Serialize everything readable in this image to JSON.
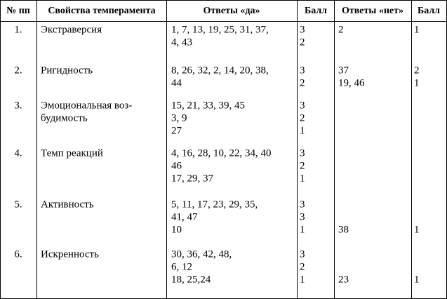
{
  "table": {
    "header": [
      "№ пп",
      "Свойства темперамента",
      "Ответы «да»",
      "Балл",
      "Ответы «нет»",
      "Балл"
    ],
    "rows": [
      {
        "num": "1.",
        "property": [
          "Экстраверсия"
        ],
        "lines": [
          {
            "yes": "1, 7, 13, 19, 25, 31, 37,",
            "score_yes": "3",
            "no": "2",
            "score_no": "1"
          },
          {
            "yes": "4, 43",
            "score_yes": "2"
          }
        ]
      },
      {
        "num": "2.",
        "property": [
          "Ригидность"
        ],
        "lines": [
          {
            "yes": "8, 26, 32, 2, 14, 20, 38,",
            "score_yes": "3",
            "no": "37",
            "score_no": "2"
          },
          {
            "yes": "44",
            "score_yes": "2",
            "no": "19, 46",
            "score_no": "1"
          }
        ]
      },
      {
        "num": "3.",
        "property": [
          "Эмоциональная воз-",
          "будимость"
        ],
        "lines": [
          {
            "yes": "15, 21, 33, 39, 45",
            "score_yes": "3"
          },
          {
            "yes": "3, 9",
            "score_yes": "2"
          },
          {
            "yes": "27",
            "score_yes": "1"
          }
        ]
      },
      {
        "num": "4.",
        "property": [
          "Темп реакций"
        ],
        "lines": [
          {
            "yes": "4, 16, 28, 10, 22, 34, 40",
            "score_yes": "3"
          },
          {
            "yes": "46",
            "score_yes": "2"
          },
          {
            "yes": "17, 29, 37",
            "score_yes": "1"
          }
        ]
      },
      {
        "num": "5.",
        "property": [
          "Активность"
        ],
        "lines": [
          {
            "yes": "5, 11, 17, 23, 29, 35,",
            "score_yes": "3"
          },
          {
            "yes": "41, 47",
            "score_yes": "3"
          },
          {
            "yes": "10",
            "score_yes": "1",
            "no": "38",
            "score_no": "1"
          }
        ]
      },
      {
        "num": "6.",
        "property": [
          "Искренность"
        ],
        "lines": [
          {
            "yes": "30, 36, 42, 48,",
            "score_yes": "3"
          },
          {
            "yes": "6, 12",
            "score_yes": "2"
          },
          {
            "yes": "18, 25,24",
            "score_yes": "1",
            "no": "23",
            "score_no": "1"
          }
        ]
      }
    ]
  }
}
